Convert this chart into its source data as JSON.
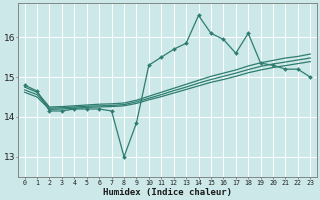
{
  "x": [
    0,
    1,
    2,
    3,
    4,
    5,
    6,
    7,
    8,
    9,
    10,
    11,
    12,
    13,
    14,
    15,
    16,
    17,
    18,
    19,
    20,
    21,
    22,
    23
  ],
  "line_main": [
    14.8,
    14.65,
    14.15,
    14.15,
    14.2,
    14.2,
    14.2,
    14.15,
    13.0,
    13.85,
    15.3,
    15.5,
    15.7,
    15.85,
    16.55,
    16.1,
    15.95,
    15.6,
    16.1,
    15.35,
    15.3,
    15.2,
    15.2,
    15.0
  ],
  "line_reg1": [
    14.75,
    14.62,
    14.25,
    14.26,
    14.28,
    14.3,
    14.32,
    14.33,
    14.35,
    14.42,
    14.52,
    14.62,
    14.72,
    14.82,
    14.92,
    15.02,
    15.1,
    15.18,
    15.28,
    15.36,
    15.42,
    15.48,
    15.52,
    15.58
  ],
  "line_reg2": [
    14.68,
    14.56,
    14.22,
    14.23,
    14.25,
    14.27,
    14.28,
    14.29,
    14.31,
    14.38,
    14.47,
    14.56,
    14.66,
    14.75,
    14.85,
    14.94,
    15.02,
    15.1,
    15.19,
    15.27,
    15.33,
    15.38,
    15.43,
    15.48
  ],
  "line_reg3": [
    14.62,
    14.5,
    14.19,
    14.2,
    14.22,
    14.24,
    14.25,
    14.26,
    14.28,
    14.34,
    14.43,
    14.51,
    14.6,
    14.69,
    14.78,
    14.87,
    14.94,
    15.02,
    15.11,
    15.18,
    15.24,
    15.29,
    15.34,
    15.39
  ],
  "color": "#2e7d70",
  "bg_color": "#cce8e8",
  "grid_color": "#ffffff",
  "ylabel_ticks": [
    13,
    14,
    15,
    16
  ],
  "xlabel": "Humidex (Indice chaleur)",
  "xlim": [
    -0.5,
    23.5
  ],
  "ylim": [
    12.5,
    16.85
  ]
}
